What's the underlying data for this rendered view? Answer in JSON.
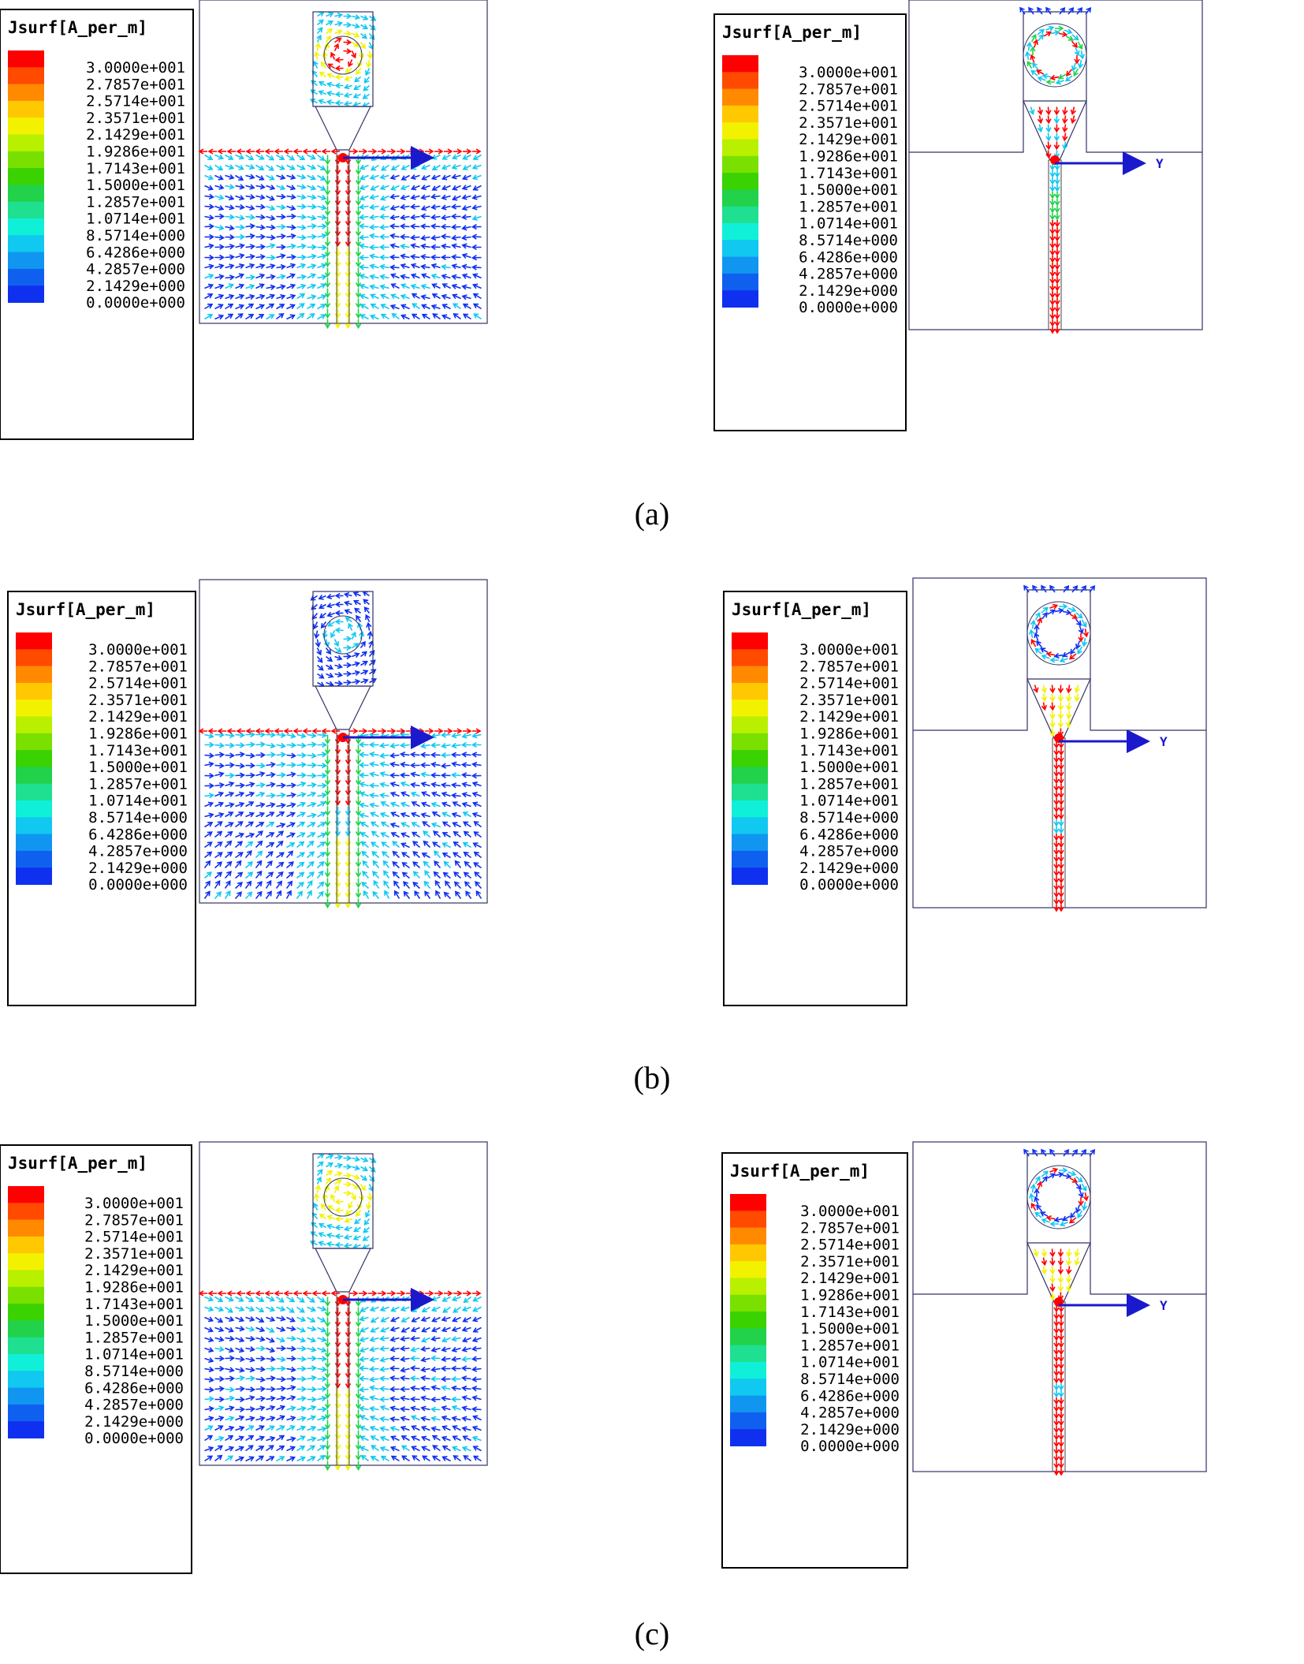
{
  "legend": {
    "title": "Jsurf[A_per_m]",
    "values": [
      "3.0000e+001",
      "2.7857e+001",
      "2.5714e+001",
      "2.3571e+001",
      "2.1429e+001",
      "1.9286e+001",
      "1.7143e+001",
      "1.5000e+001",
      "1.2857e+001",
      "1.0714e+001",
      "8.5714e+000",
      "6.4286e+000",
      "4.2857e+000",
      "2.1429e+000",
      "0.0000e+000"
    ],
    "colors": [
      "#ff0000",
      "#ff4a00",
      "#ff8a00",
      "#ffc800",
      "#f2f200",
      "#b8f000",
      "#7ae000",
      "#3ad200",
      "#21d24a",
      "#1ee090",
      "#10f0d8",
      "#10c8f0",
      "#1096f0",
      "#1060f0",
      "#1030f0"
    ]
  },
  "panels": [
    {
      "caption": "(a)",
      "axis_label": "Y"
    },
    {
      "caption": "(b)",
      "axis_label": "Y"
    },
    {
      "caption": "(c)",
      "axis_label": "Y"
    }
  ],
  "arrow_color_scheme": [
    "#1030f0",
    "#10c8f0",
    "#21d24a",
    "#f2f200",
    "#ff0000"
  ],
  "axis_arrow_color": "#1a1acc"
}
